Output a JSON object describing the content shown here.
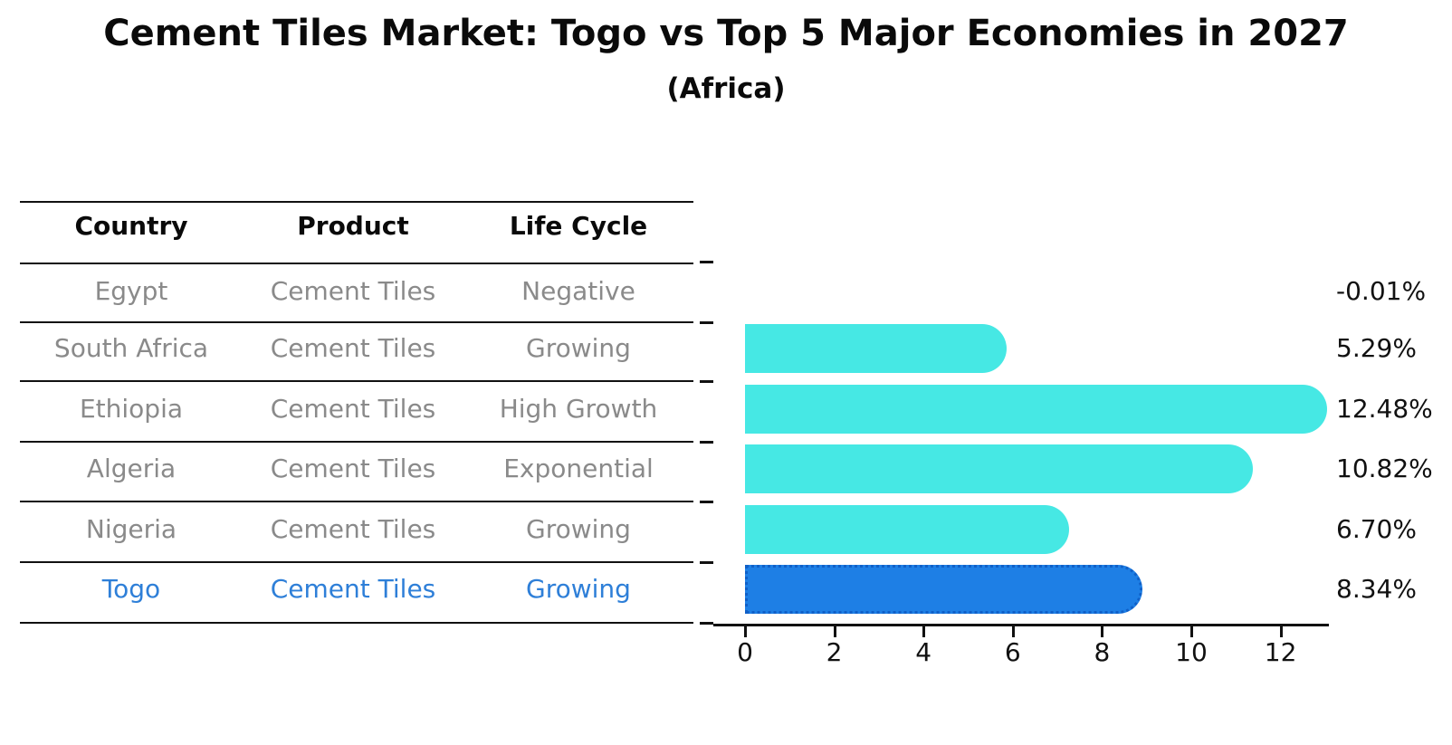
{
  "title": "Cement Tiles Market: Togo vs Top 5 Major Economies in 2027",
  "subtitle": "(Africa)",
  "table": {
    "headers": [
      "Country",
      "Product",
      "Life Cycle"
    ],
    "rows": [
      {
        "country": "Egypt",
        "product": "Cement Tiles",
        "life_cycle": "Negative",
        "highlight": false
      },
      {
        "country": "South Africa",
        "product": "Cement Tiles",
        "life_cycle": "Growing",
        "highlight": false
      },
      {
        "country": "Ethiopia",
        "product": "Cement Tiles",
        "life_cycle": "High Growth",
        "highlight": false
      },
      {
        "country": "Algeria",
        "product": "Cement Tiles",
        "life_cycle": "Exponential",
        "highlight": false
      },
      {
        "country": "Nigeria",
        "product": "Cement Tiles",
        "life_cycle": "Growing",
        "highlight": false
      },
      {
        "country": "Togo",
        "product": "Cement Tiles",
        "life_cycle": "Growing",
        "highlight": true
      }
    ]
  },
  "chart_data": {
    "type": "bar",
    "orientation": "horizontal",
    "title": "Cement Tiles Market: Togo vs Top 5 Major Economies in 2027",
    "subtitle": "(Africa)",
    "categories": [
      "Egypt",
      "South Africa",
      "Ethiopia",
      "Algeria",
      "Nigeria",
      "Togo"
    ],
    "values": [
      -0.01,
      5.29,
      12.48,
      10.82,
      6.7,
      8.34
    ],
    "value_labels": [
      "-0.01%",
      "5.29%",
      "12.48%",
      "10.82%",
      "6.70%",
      "8.34%"
    ],
    "xticks": [
      0,
      2,
      4,
      6,
      8,
      10,
      12
    ],
    "xlim": [
      -0.7,
      13.1
    ],
    "xlabel": "",
    "ylabel": "",
    "grid": false,
    "legend": false,
    "highlight_index": 5
  },
  "colors": {
    "bar": "#46E8E4",
    "highlight_bar": "#1E7FE5",
    "highlight_border": "#1060C8",
    "highlight_text": "#2E7FD8",
    "table_text": "#8A8A8A",
    "axis": "#111111"
  }
}
